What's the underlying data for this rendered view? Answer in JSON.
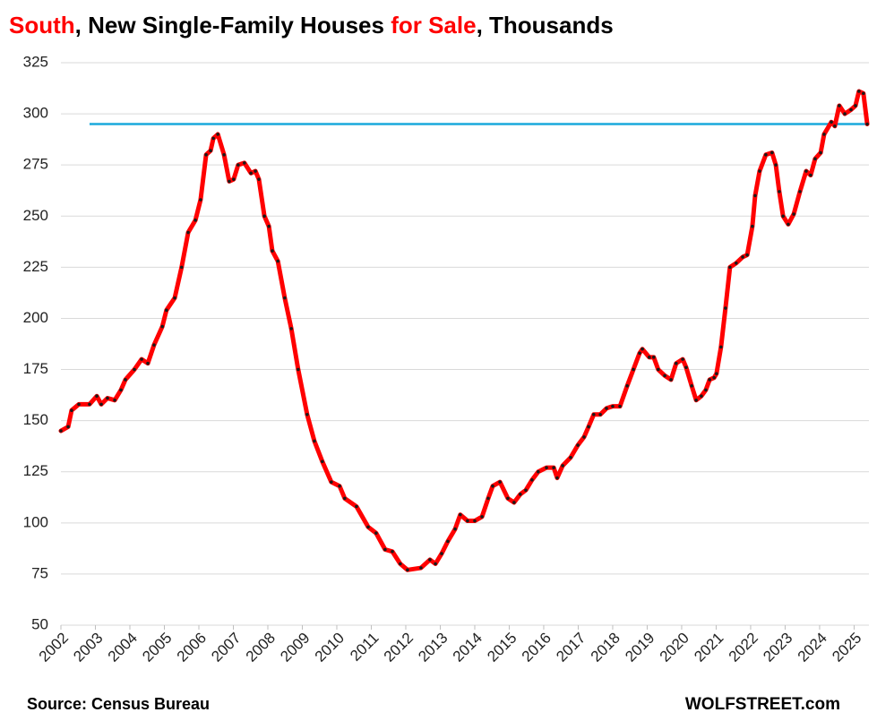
{
  "chart_data": {
    "type": "line",
    "title_parts": [
      {
        "text": "South",
        "color": "#ff0000"
      },
      {
        "text": ", New Single-Family Houses ",
        "color": "#000000"
      },
      {
        "text": "for Sale",
        "color": "#ff0000"
      },
      {
        "text": ", Thousands",
        "color": "#000000"
      }
    ],
    "source": "Source: Census Bureau",
    "credit": "WOLFSTREET.com",
    "color": "#ff0000",
    "marker_color": "#1a1a1a",
    "grid": true,
    "xlim": [
      2002,
      2025.43
    ],
    "xticks": [
      2002,
      2003,
      2004,
      2005,
      2006,
      2007,
      2008,
      2009,
      2010,
      2011,
      2012,
      2013,
      2014,
      2015,
      2016,
      2017,
      2018,
      2019,
      2020,
      2021,
      2022,
      2023,
      2024,
      2025
    ],
    "ylim": [
      50,
      325
    ],
    "yticks": [
      50,
      75,
      100,
      125,
      150,
      175,
      200,
      225,
      250,
      275,
      300,
      325
    ],
    "reference_line": {
      "value": 295,
      "x_start": 2002.83,
      "color": "#1aa9dc"
    },
    "x": [
      2002.0,
      2002.21,
      2002.31,
      2002.52,
      2002.83,
      2003.04,
      2003.17,
      2003.35,
      2003.56,
      2003.74,
      2003.87,
      2004.13,
      2004.34,
      2004.52,
      2004.7,
      2004.94,
      2005.06,
      2005.3,
      2005.5,
      2005.69,
      2005.9,
      2006.05,
      2006.21,
      2006.34,
      2006.42,
      2006.55,
      2006.73,
      2006.88,
      2007.01,
      2007.14,
      2007.32,
      2007.51,
      2007.64,
      2007.74,
      2007.9,
      2008.03,
      2008.13,
      2008.29,
      2008.49,
      2008.68,
      2008.88,
      2009.14,
      2009.35,
      2009.58,
      2009.84,
      2010.08,
      2010.23,
      2010.57,
      2010.91,
      2011.14,
      2011.4,
      2011.61,
      2011.84,
      2012.05,
      2012.44,
      2012.7,
      2012.86,
      2013.04,
      2013.22,
      2013.43,
      2013.58,
      2013.79,
      2014.0,
      2014.21,
      2014.39,
      2014.52,
      2014.73,
      2014.96,
      2015.14,
      2015.32,
      2015.48,
      2015.66,
      2015.84,
      2016.08,
      2016.29,
      2016.39,
      2016.55,
      2016.78,
      2016.99,
      2017.17,
      2017.3,
      2017.45,
      2017.64,
      2017.82,
      2018.0,
      2018.21,
      2018.42,
      2018.6,
      2018.78,
      2018.86,
      2019.06,
      2019.19,
      2019.32,
      2019.51,
      2019.69,
      2019.84,
      2020.03,
      2020.13,
      2020.29,
      2020.42,
      2020.57,
      2020.7,
      2020.81,
      2020.94,
      2021.01,
      2021.14,
      2021.27,
      2021.4,
      2021.58,
      2021.77,
      2021.9,
      2022.05,
      2022.13,
      2022.26,
      2022.44,
      2022.62,
      2022.73,
      2022.83,
      2022.94,
      2023.09,
      2023.25,
      2023.43,
      2023.61,
      2023.74,
      2023.87,
      2024.03,
      2024.13,
      2024.34,
      2024.44,
      2024.57,
      2024.73,
      2024.91,
      2025.04,
      2025.14,
      2025.27,
      2025.38
    ],
    "values": [
      145,
      147,
      155,
      158,
      158,
      162,
      158,
      161,
      160,
      165,
      170,
      175,
      180,
      178,
      187,
      196,
      204,
      210,
      225,
      242,
      248,
      258,
      280,
      282,
      288,
      290,
      280,
      267,
      268,
      275,
      276,
      271,
      272,
      268,
      250,
      245,
      233,
      228,
      210,
      195,
      175,
      153,
      140,
      130,
      120,
      118,
      112,
      108,
      98,
      95,
      87,
      86,
      80,
      77,
      78,
      82,
      80,
      85,
      91,
      97,
      104,
      101,
      101,
      103,
      112,
      118,
      120,
      112,
      110,
      114,
      116,
      121,
      125,
      127,
      127,
      122,
      128,
      132,
      138,
      142,
      147,
      153,
      153,
      156,
      157,
      157,
      167,
      175,
      183,
      185,
      181,
      181,
      175,
      172,
      170,
      178,
      180,
      176,
      167,
      160,
      162,
      165,
      170,
      171,
      173,
      186,
      205,
      225,
      227,
      230,
      231,
      245,
      260,
      272,
      280,
      281,
      275,
      262,
      250,
      246,
      251,
      262,
      272,
      270,
      278,
      281,
      290,
      296,
      294,
      304,
      300,
      302,
      304,
      311,
      310,
      295
    ]
  }
}
